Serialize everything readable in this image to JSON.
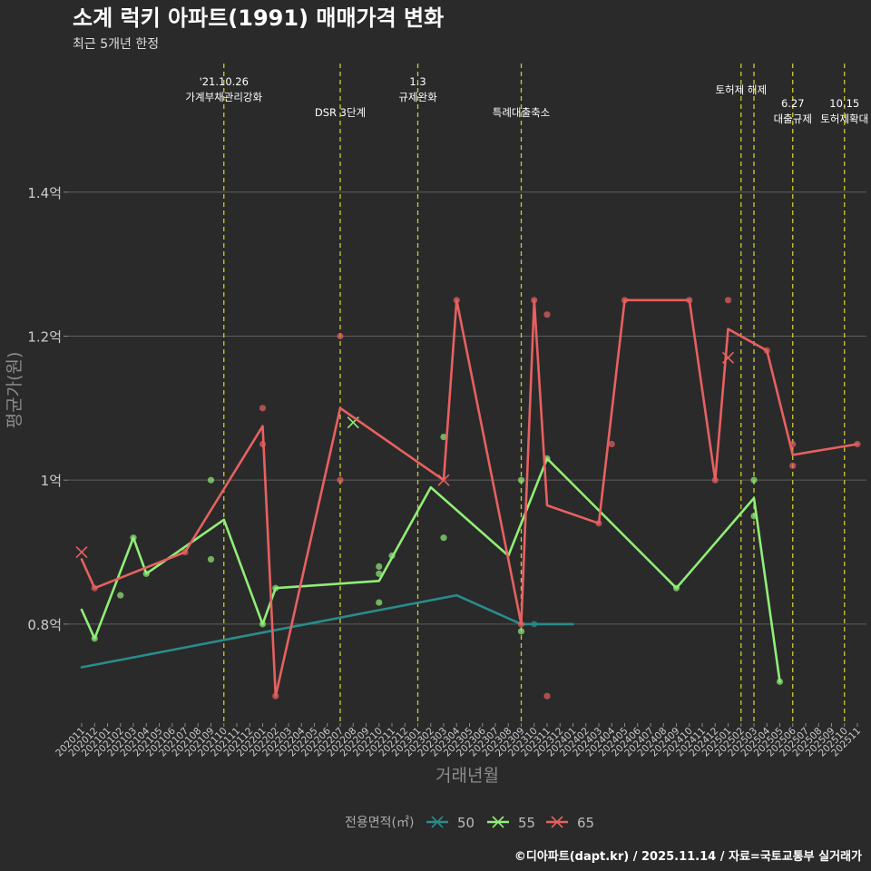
{
  "header": {
    "title": "소계 럭키 아파트(1991) 매매가격 변화",
    "subtitle": "최근 5개년 한정"
  },
  "footer": {
    "credit": "©디아파트(dapt.kr) / 2025.11.14 / 자료=국토교통부 실거래가"
  },
  "colors": {
    "background": "#2a2a2a",
    "grid": "#5e5e5e",
    "event_line": "#cccc33",
    "text": "#ffffff",
    "axis_text": "#cccccc",
    "axis_title": "#8c8c8c"
  },
  "chart_data": {
    "type": "line",
    "title": "소계 럭키 아파트(1991) 매매가격 변화",
    "subtitle": "최근 5개년 한정",
    "xlabel": "거래년월",
    "ylabel": "평균가(원)",
    "ylim": [
      0.665,
      1.585
    ],
    "y_ticks": [
      {
        "value": 0.8,
        "label": "0.8억"
      },
      {
        "value": 1.0,
        "label": "1억"
      },
      {
        "value": 1.2,
        "label": "1.2억"
      },
      {
        "value": 1.4,
        "label": "1.4억"
      }
    ],
    "categories": [
      "202011",
      "202012",
      "202101",
      "202102",
      "202103",
      "202104",
      "202105",
      "202106",
      "202107",
      "202108",
      "202109",
      "202110",
      "202111",
      "202112",
      "202201",
      "202202",
      "202203",
      "202204",
      "202205",
      "202206",
      "202207",
      "202208",
      "202209",
      "202210",
      "202211",
      "202212",
      "202301",
      "202302",
      "202303",
      "202304",
      "202305",
      "202306",
      "202307",
      "202308",
      "202309",
      "202310",
      "202311",
      "202312",
      "202401",
      "202402",
      "202403",
      "202404",
      "202405",
      "202406",
      "202407",
      "202408",
      "202409",
      "202410",
      "202411",
      "202412",
      "202501",
      "202502",
      "202503",
      "202504",
      "202505",
      "202506",
      "202507",
      "202508",
      "202509",
      "202510",
      "202511"
    ],
    "legend": {
      "title": "전용면적(㎡)",
      "position": "bottom"
    },
    "series": [
      {
        "name": "50",
        "color": "#2a8c8c",
        "line": [
          [
            "202011",
            0.74
          ],
          [
            "202304",
            0.84
          ],
          [
            "202309",
            0.8
          ],
          [
            "202401",
            0.8
          ]
        ],
        "points": [
          [
            "202310",
            0.8
          ]
        ]
      },
      {
        "name": "55",
        "color": "#90ee77",
        "line": [
          [
            "202011",
            0.82
          ],
          [
            "202012",
            0.78
          ],
          [
            "202103",
            0.92
          ],
          [
            "202104",
            0.87
          ],
          [
            "202110",
            0.945
          ],
          [
            "202201",
            0.8
          ],
          [
            "202202",
            0.85
          ],
          [
            "202210",
            0.86
          ],
          [
            "202302",
            0.99
          ],
          [
            "202308",
            0.895
          ],
          [
            "202311",
            1.03
          ],
          [
            "202409",
            0.85
          ],
          [
            "202503",
            0.975
          ],
          [
            "202505",
            0.72
          ]
        ],
        "points": [
          [
            "202012",
            0.78
          ],
          [
            "202102",
            0.84
          ],
          [
            "202103",
            0.92
          ],
          [
            "202104",
            0.87
          ],
          [
            "202109",
            1.0
          ],
          [
            "202109",
            0.89
          ],
          [
            "202201",
            0.8
          ],
          [
            "202202",
            0.85
          ],
          [
            "202210",
            0.88
          ],
          [
            "202210",
            0.87
          ],
          [
            "202210",
            0.83
          ],
          [
            "202211",
            0.895
          ],
          [
            "202303",
            1.06
          ],
          [
            "202303",
            0.92
          ],
          [
            "202309",
            1.0
          ],
          [
            "202309",
            0.79
          ],
          [
            "202311",
            1.03
          ],
          [
            "202409",
            0.85
          ],
          [
            "202503",
            1.0
          ],
          [
            "202503",
            0.95
          ],
          [
            "202505",
            0.72
          ]
        ],
        "crosses": [
          [
            "202208",
            1.08
          ]
        ]
      },
      {
        "name": "65",
        "color": "#e86060",
        "line": [
          [
            "202011",
            0.89
          ],
          [
            "202012",
            0.85
          ],
          [
            "202107",
            0.9
          ],
          [
            "202201",
            1.075
          ],
          [
            "202202",
            0.7
          ],
          [
            "202207",
            1.1
          ],
          [
            "202303",
            1.0
          ],
          [
            "202304",
            1.25
          ],
          [
            "202309",
            0.8
          ],
          [
            "202310",
            1.25
          ],
          [
            "202311",
            0.965
          ],
          [
            "202403",
            0.94
          ],
          [
            "202405",
            1.25
          ],
          [
            "202410",
            1.25
          ],
          [
            "202412",
            1.0
          ],
          [
            "202501",
            1.21
          ],
          [
            "202504",
            1.18
          ],
          [
            "202506",
            1.035
          ],
          [
            "202511",
            1.05
          ]
        ],
        "points": [
          [
            "202012",
            0.85
          ],
          [
            "202107",
            0.9
          ],
          [
            "202201",
            1.1
          ],
          [
            "202201",
            1.05
          ],
          [
            "202202",
            0.7
          ],
          [
            "202207",
            1.2
          ],
          [
            "202207",
            1.0
          ],
          [
            "202304",
            1.25
          ],
          [
            "202309",
            0.8
          ],
          [
            "202310",
            1.25
          ],
          [
            "202311",
            1.23
          ],
          [
            "202311",
            0.7
          ],
          [
            "202403",
            0.94
          ],
          [
            "202404",
            1.05
          ],
          [
            "202405",
            1.25
          ],
          [
            "202410",
            1.25
          ],
          [
            "202412",
            1.0
          ],
          [
            "202501",
            1.25
          ],
          [
            "202504",
            1.18
          ],
          [
            "202506",
            1.05
          ],
          [
            "202506",
            1.02
          ],
          [
            "202511",
            1.05
          ]
        ],
        "crosses": [
          [
            "202011",
            0.9
          ],
          [
            "202303",
            1.0
          ],
          [
            "202501",
            1.17
          ]
        ]
      }
    ],
    "events": [
      {
        "x": 11.0,
        "lines": [
          "'21.10.26",
          "가계부채관리강화"
        ],
        "row": 0
      },
      {
        "x": 20.0,
        "lines": [
          "DSR 3단계"
        ],
        "row": 2
      },
      {
        "x": 26.0,
        "lines": [
          "1.3",
          "규제완화"
        ],
        "row": 0
      },
      {
        "x": 34.0,
        "lines": [
          "특례대출축소"
        ],
        "row": 2
      },
      {
        "x": 51.0,
        "lines": [
          "토허제 해제"
        ],
        "row": 1
      },
      {
        "x": 52.0,
        "lines": [],
        "row": 1
      },
      {
        "x": 55.0,
        "lines": [
          "6.27",
          "대출규제"
        ],
        "row": 1.5
      },
      {
        "x": 59.0,
        "lines": [
          "10.15",
          "토허제확대"
        ],
        "row": 1.5
      }
    ]
  }
}
